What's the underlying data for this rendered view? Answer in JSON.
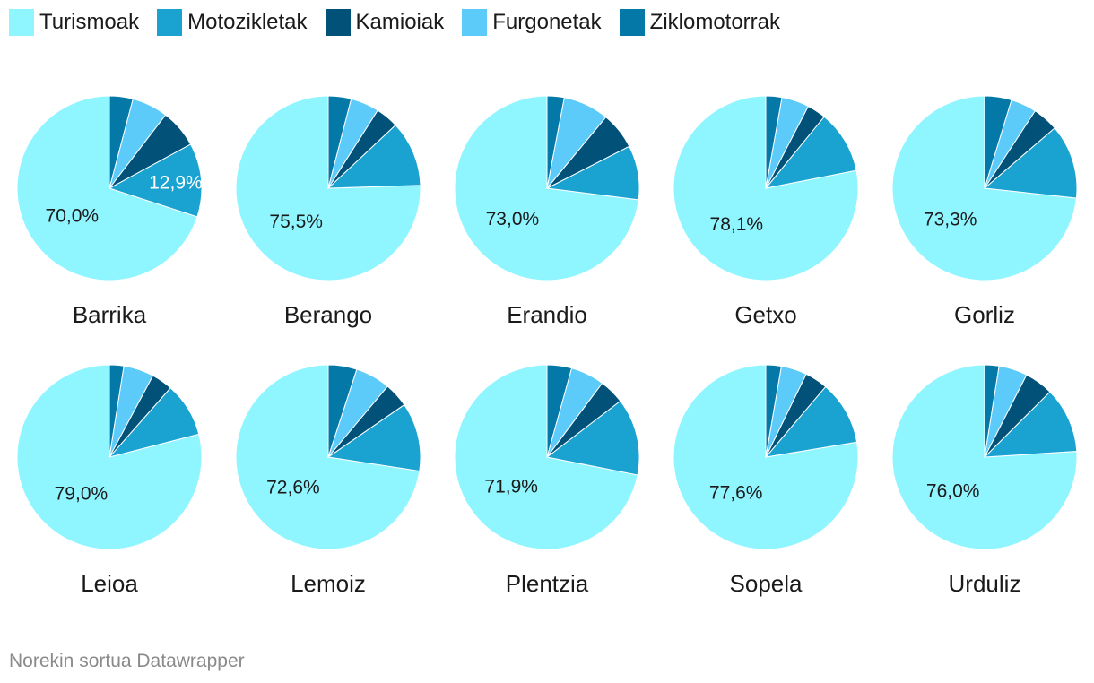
{
  "legend": [
    {
      "name": "Turismoak",
      "color": "#8ff5ff"
    },
    {
      "name": "Motozikletak",
      "color": "#1aa3d1"
    },
    {
      "name": "Kamioiak",
      "color": "#025178"
    },
    {
      "name": "Furgonetak",
      "color": "#5ccbfa"
    },
    {
      "name": "Ziklomotorrak",
      "color": "#0478a6"
    }
  ],
  "footer": "Norekin sortua Datawrapper",
  "chart_data": {
    "type": "pie",
    "series_names": [
      "Turismoak",
      "Motozikletak",
      "Kamioiak",
      "Furgonetak",
      "Ziklomotorrak"
    ],
    "colors": [
      "#8ff5ff",
      "#1aa3d1",
      "#025178",
      "#5ccbfa",
      "#0478a6"
    ],
    "pies": [
      {
        "title": "Barrika",
        "values": [
          70.0,
          12.9,
          6.7,
          6.3,
          4.1
        ],
        "labels": [
          "70,0%",
          "12,9%",
          "",
          "",
          ""
        ]
      },
      {
        "title": "Berango",
        "values": [
          75.5,
          11.5,
          4.0,
          5.0,
          4.0
        ],
        "labels": [
          "75,5%",
          "",
          "",
          "",
          ""
        ]
      },
      {
        "title": "Erandio",
        "values": [
          73.0,
          9.5,
          6.5,
          8.0,
          3.0
        ],
        "labels": [
          "73,0%",
          "",
          "",
          "",
          ""
        ]
      },
      {
        "title": "Getxo",
        "values": [
          78.1,
          11.0,
          3.3,
          4.8,
          2.8
        ],
        "labels": [
          "78,1%",
          "",
          "",
          "",
          ""
        ]
      },
      {
        "title": "Gorliz",
        "values": [
          73.3,
          13.0,
          4.5,
          4.5,
          4.7
        ],
        "labels": [
          "73,3%",
          "",
          "",
          "",
          ""
        ]
      },
      {
        "title": "Leioa",
        "values": [
          79.0,
          9.5,
          3.7,
          5.3,
          2.5
        ],
        "labels": [
          "79,0%",
          "",
          "",
          "",
          ""
        ]
      },
      {
        "title": "Lemoiz",
        "values": [
          72.6,
          12.0,
          4.3,
          6.1,
          5.0
        ],
        "labels": [
          "72,6%",
          "",
          "",
          "",
          ""
        ]
      },
      {
        "title": "Plentzia",
        "values": [
          71.9,
          13.5,
          4.4,
          5.9,
          4.3
        ],
        "labels": [
          "71,9%",
          "",
          "",
          "",
          ""
        ]
      },
      {
        "title": "Sopela",
        "values": [
          77.6,
          11.2,
          4.0,
          4.5,
          2.7
        ],
        "labels": [
          "77,6%",
          "",
          "",
          "",
          ""
        ]
      },
      {
        "title": "Urduliz",
        "values": [
          76.0,
          11.5,
          5.0,
          5.0,
          2.5
        ],
        "labels": [
          "76,0%",
          "",
          "",
          "",
          ""
        ]
      }
    ]
  }
}
